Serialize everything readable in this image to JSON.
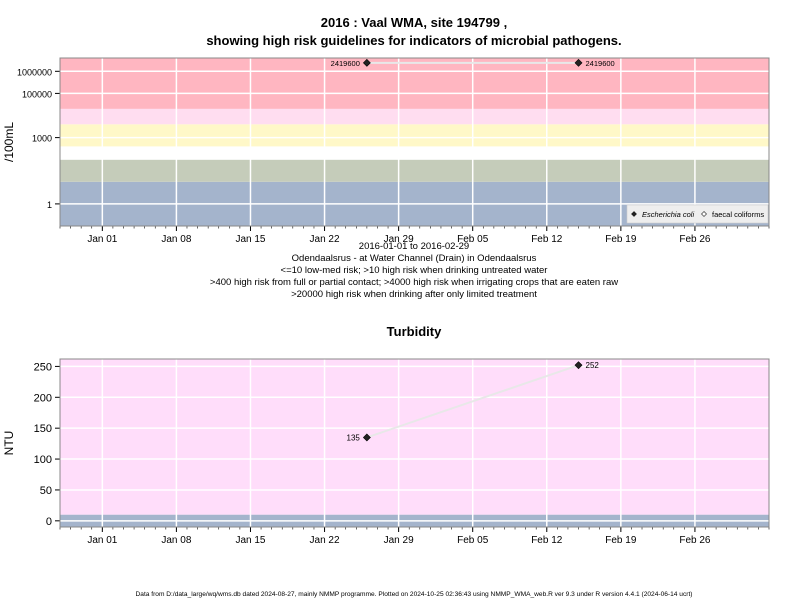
{
  "title_line1": "2016 : Vaal WMA, site 194799 ,",
  "title_line2": "showing high risk guidelines for indicators of microbial pathogens.",
  "footer": "Data from D:/data_large/wq/wms.db dated 2024-08-27, mainly NMMP programme. Plotted on 2024-10-25 02:36:43 using NMMP_WMA_web.R ver 9.3 under R version 4.4.1 (2024-06-14 ucrt)",
  "colors": {
    "red_band": "#ffb6c1",
    "pink_band": "#ffddf0",
    "yellow_band": "#fff8c8",
    "green_band": "#c5ccba",
    "blue_band": "#a4b4cc",
    "turbidity_bg": "#ffddfa",
    "turbidity_low_band": "#a4b4cc",
    "series_line": "#e8e8e8",
    "marker": "#222222"
  },
  "chart_data": [
    {
      "type": "line",
      "panel": "microbial",
      "ylabel": "/100mL",
      "yscale": "log10",
      "ylim": [
        0.1,
        4000000
      ],
      "xlim": [
        "2015-12-28",
        "2016-03-04"
      ],
      "yticks": [
        1,
        1000,
        100000,
        1000000
      ],
      "ytick_labels": [
        "1",
        "1000",
        "100000",
        "1000000"
      ],
      "xticks": [
        "2016-01-01",
        "2016-01-08",
        "2016-01-15",
        "2016-01-22",
        "2016-01-29",
        "2016-02-05",
        "2016-02-12",
        "2016-02-19",
        "2016-02-26"
      ],
      "xtick_labels": [
        "Jan 01",
        "Jan 08",
        "Jan 15",
        "Jan 22",
        "Jan 29",
        "Feb 05",
        "Feb 12",
        "Feb 19",
        "Feb 26"
      ],
      "bands": [
        {
          "from": 0.1,
          "to": 10,
          "color": "#a4b4cc"
        },
        {
          "from": 10,
          "to": 100,
          "color": "#c5ccba"
        },
        {
          "from": 100,
          "to": 400,
          "color": "#ffffff"
        },
        {
          "from": 400,
          "to": 4000,
          "color": "#fff8c8"
        },
        {
          "from": 4000,
          "to": 20000,
          "color": "#ffddf0"
        },
        {
          "from": 20000,
          "to": 4000000,
          "color": "#ffb6c1"
        }
      ],
      "series": [
        {
          "name": "Escherichia coli",
          "x": [
            "2016-01-26",
            "2016-02-15"
          ],
          "y": [
            2419600,
            2419600
          ],
          "labels": [
            "2419600",
            "2419600"
          ],
          "marker": "diamond-filled"
        },
        {
          "name": "faecal coliforms",
          "x": [],
          "y": [],
          "marker": "diamond-open"
        }
      ],
      "legend": "bottom-right",
      "annotations": [
        "2016-01-01 to 2016-02-29",
        "Odendaalsrus - at Water Channel (Drain) in Odendaalsrus",
        "<=10 low-med risk; >10 high risk when drinking untreated water",
        ">400 high risk from full or partial contact; >4000 high risk when irrigating crops that are eaten raw",
        ">20000 high risk when drinking after only limited treatment"
      ]
    },
    {
      "type": "line",
      "panel": "turbidity",
      "title": "Turbidity",
      "ylabel": "NTU",
      "ylim": [
        -10,
        262
      ],
      "xlim": [
        "2015-12-28",
        "2016-03-04"
      ],
      "yticks": [
        0,
        50,
        100,
        150,
        200,
        250
      ],
      "xticks": [
        "2016-01-01",
        "2016-01-08",
        "2016-01-15",
        "2016-01-22",
        "2016-01-29",
        "2016-02-05",
        "2016-02-12",
        "2016-02-19",
        "2016-02-26"
      ],
      "xtick_labels": [
        "Jan 01",
        "Jan 08",
        "Jan 15",
        "Jan 22",
        "Jan 29",
        "Feb 05",
        "Feb 12",
        "Feb 19",
        "Feb 26"
      ],
      "bands": [
        {
          "from": -10,
          "to": 10,
          "color": "#a4b4cc"
        },
        {
          "from": 10,
          "to": 262,
          "color": "#ffddfa"
        }
      ],
      "series": [
        {
          "name": "Turbidity",
          "x": [
            "2016-01-26",
            "2016-02-15"
          ],
          "y": [
            135,
            252
          ],
          "labels": [
            "135",
            "252"
          ],
          "marker": "diamond-filled"
        }
      ]
    }
  ]
}
